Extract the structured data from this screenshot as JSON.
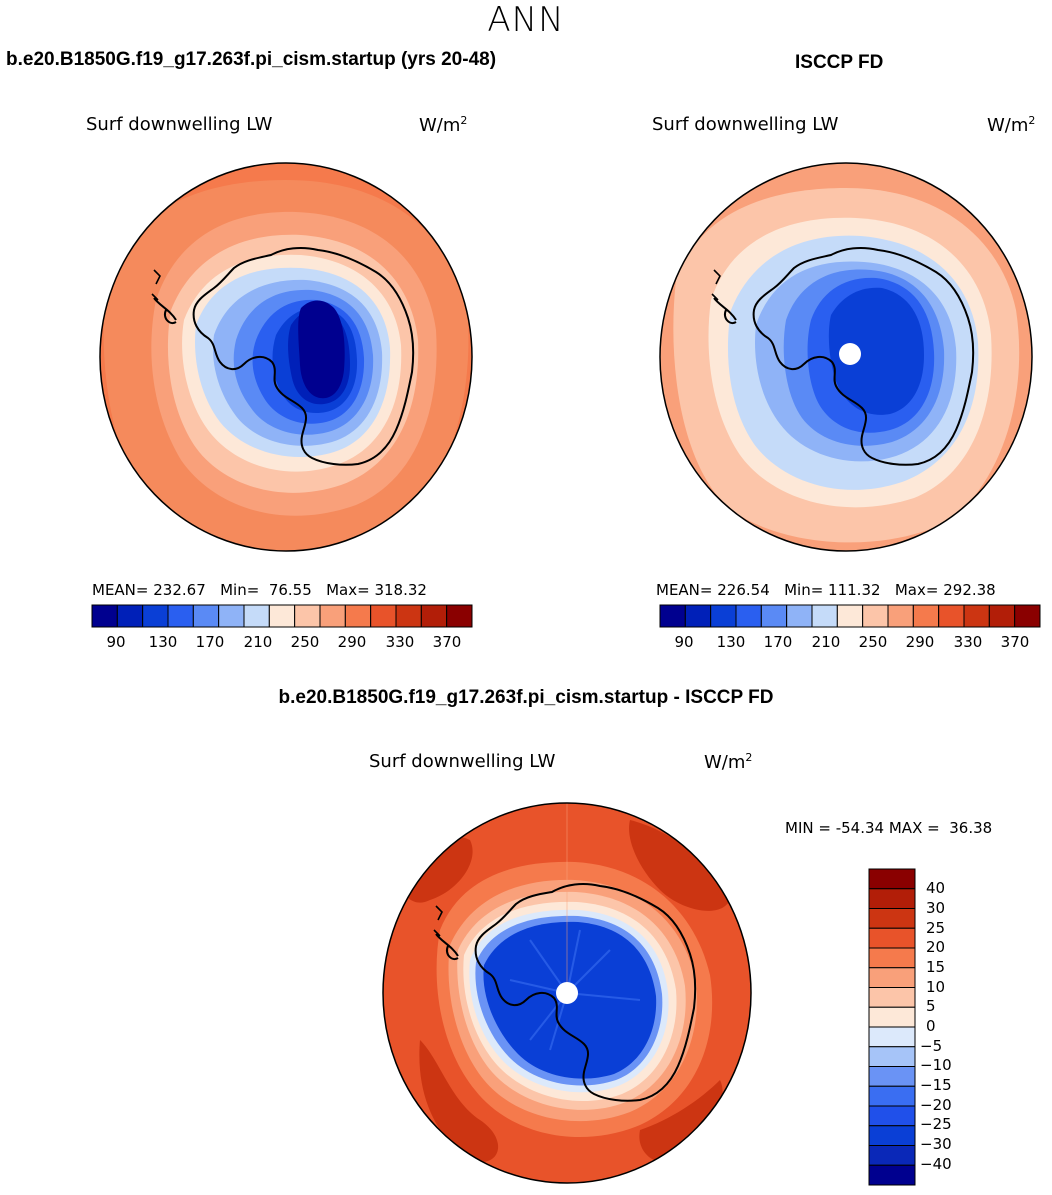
{
  "title": "ANN",
  "panels": [
    {
      "case_title": "b.e20.B1850G.f19_g17.263f.pi_cism.startup (yrs 20-48)",
      "variable": "Surf downwelling LW",
      "units_base": "W/m",
      "units_exp": "2",
      "stats": {
        "mean_label": "MEAN=",
        "mean": "232.67",
        "min_label": "Min=",
        "min": "76.55",
        "max_label": "Max=",
        "max": "318.32"
      },
      "colorbar_labels": [
        "90",
        "130",
        "170",
        "210",
        "250",
        "290",
        "330",
        "370"
      ]
    },
    {
      "case_title": "ISCCP FD",
      "variable": "Surf downwelling LW",
      "units_base": "W/m",
      "units_exp": "2",
      "stats": {
        "mean_label": "MEAN=",
        "mean": "226.54",
        "min_label": "Min=",
        "min": "111.32",
        "max_label": "Max=",
        "max": "292.38"
      },
      "colorbar_labels": [
        "90",
        "130",
        "170",
        "210",
        "250",
        "290",
        "330",
        "370"
      ]
    }
  ],
  "diff_panel": {
    "case_title": "b.e20.B1850G.f19_g17.263f.pi_cism.startup - ISCCP FD",
    "variable": "Surf downwelling LW",
    "units_base": "W/m",
    "units_exp": "2",
    "min_label": "MIN =",
    "min": "-54.34",
    "max_label": "MAX =",
    "max": "36.38",
    "colorbar_labels": [
      "40",
      "30",
      "25",
      "20",
      "15",
      "10",
      "5",
      "0",
      "−5",
      "−10",
      "−15",
      "−20",
      "−25",
      "−30",
      "−40"
    ]
  },
  "colors": {
    "abs_scale": [
      "#00008f",
      "#0020b8",
      "#0a3fd6",
      "#2a5ff0",
      "#5a8af5",
      "#8fb3f7",
      "#c5dbf9",
      "#fde8d8",
      "#fcc5a9",
      "#f9a07a",
      "#f57a4c",
      "#e8532a",
      "#cc3512",
      "#b21e08",
      "#8a0000"
    ],
    "diff_scale": [
      "#00008f",
      "#0a28b8",
      "#0a3fd6",
      "#2050ea",
      "#3a6ef2",
      "#6a93f5",
      "#a6c4f8",
      "#dce9fb",
      "#fde8d8",
      "#fcc5a9",
      "#f9a07a",
      "#f57a4c",
      "#e8532a",
      "#cc3512",
      "#b21e08",
      "#8a0000"
    ]
  }
}
